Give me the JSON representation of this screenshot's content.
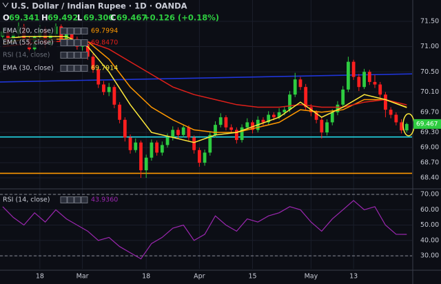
{
  "chart_data": {
    "type": "candlestick",
    "title": "U.S. Dollar / Indian Rupee · 1D · OANDA",
    "readout": [
      {
        "key": "O",
        "value": "69.341"
      },
      {
        "key": "H",
        "value": "69.492"
      },
      {
        "key": "L",
        "value": "69.300"
      },
      {
        "key": "C",
        "value": "69.467"
      }
    ],
    "change": "+0.126 (+0.18%)",
    "up_color": "#2ecc40",
    "down_color": "#ff1f1f",
    "ohlc": [
      [
        71.2,
        71.38,
        71.12,
        71.3
      ],
      [
        71.3,
        71.36,
        71.02,
        71.1
      ],
      [
        71.1,
        71.32,
        71.04,
        71.25
      ],
      [
        71.25,
        71.48,
        71.18,
        71.4
      ],
      [
        71.4,
        71.45,
        71.08,
        71.15
      ],
      [
        71.15,
        71.2,
        70.88,
        70.95
      ],
      [
        70.95,
        71.28,
        70.9,
        71.2
      ],
      [
        71.2,
        71.42,
        71.14,
        71.35
      ],
      [
        71.35,
        71.4,
        70.98,
        71.05
      ],
      [
        71.05,
        71.32,
        71.0,
        71.25
      ],
      [
        71.25,
        71.46,
        71.2,
        71.4
      ],
      [
        71.4,
        71.44,
        71.04,
        71.1
      ],
      [
        71.1,
        71.36,
        71.05,
        71.3
      ],
      [
        71.3,
        71.34,
        71.08,
        71.15
      ],
      [
        71.15,
        71.2,
        70.94,
        71.0
      ],
      [
        71.0,
        71.12,
        70.92,
        71.05
      ],
      [
        71.05,
        71.08,
        70.74,
        70.8
      ],
      [
        70.8,
        70.86,
        70.48,
        70.55
      ],
      [
        70.55,
        70.6,
        70.18,
        70.25
      ],
      [
        70.25,
        70.32,
        70.04,
        70.1
      ],
      [
        70.1,
        70.28,
        70.02,
        70.2
      ],
      [
        70.2,
        70.24,
        69.78,
        69.85
      ],
      [
        69.85,
        69.9,
        69.48,
        69.55
      ],
      [
        69.55,
        69.6,
        69.12,
        69.2
      ],
      [
        69.2,
        69.26,
        68.88,
        68.95
      ],
      [
        68.95,
        69.18,
        68.9,
        69.1
      ],
      [
        69.1,
        69.14,
        68.4,
        68.55
      ],
      [
        68.55,
        68.86,
        68.4,
        68.8
      ],
      [
        68.8,
        69.16,
        68.74,
        69.1
      ],
      [
        69.1,
        69.14,
        68.84,
        68.9
      ],
      [
        68.9,
        69.12,
        68.84,
        69.05
      ],
      [
        69.05,
        69.28,
        69.0,
        69.2
      ],
      [
        69.2,
        69.42,
        69.14,
        69.35
      ],
      [
        69.35,
        69.4,
        69.18,
        69.25
      ],
      [
        69.25,
        69.46,
        69.2,
        69.4
      ],
      [
        69.4,
        69.44,
        69.14,
        69.2
      ],
      [
        69.2,
        69.24,
        68.88,
        68.95
      ],
      [
        68.95,
        69.0,
        68.62,
        68.7
      ],
      [
        68.7,
        68.96,
        68.64,
        68.9
      ],
      [
        68.9,
        69.32,
        68.84,
        69.25
      ],
      [
        69.25,
        69.52,
        69.2,
        69.45
      ],
      [
        69.45,
        69.68,
        69.4,
        69.6
      ],
      [
        69.6,
        69.64,
        69.34,
        69.4
      ],
      [
        69.4,
        69.46,
        69.28,
        69.35
      ],
      [
        69.35,
        69.4,
        69.08,
        69.15
      ],
      [
        69.15,
        69.46,
        69.1,
        69.4
      ],
      [
        69.4,
        69.58,
        69.34,
        69.5
      ],
      [
        69.5,
        69.54,
        69.28,
        69.35
      ],
      [
        69.35,
        69.62,
        69.3,
        69.55
      ],
      [
        69.55,
        69.6,
        69.44,
        69.5
      ],
      [
        69.5,
        69.72,
        69.46,
        69.65
      ],
      [
        69.65,
        69.7,
        69.54,
        69.6
      ],
      [
        69.6,
        69.78,
        69.56,
        69.7
      ],
      [
        69.7,
        69.82,
        69.64,
        69.75
      ],
      [
        69.75,
        70.12,
        69.7,
        70.05
      ],
      [
        70.05,
        70.48,
        70.0,
        70.35
      ],
      [
        70.35,
        70.4,
        70.14,
        70.2
      ],
      [
        70.2,
        70.26,
        69.74,
        69.8
      ],
      [
        69.8,
        69.86,
        69.62,
        69.7
      ],
      [
        69.7,
        69.74,
        69.48,
        69.55
      ],
      [
        69.55,
        69.6,
        69.18,
        69.3
      ],
      [
        69.3,
        69.56,
        69.24,
        69.5
      ],
      [
        69.5,
        69.76,
        69.44,
        69.7
      ],
      [
        69.7,
        69.92,
        69.64,
        69.85
      ],
      [
        69.85,
        70.22,
        69.8,
        70.15
      ],
      [
        70.15,
        70.8,
        70.1,
        70.7
      ],
      [
        70.7,
        70.74,
        70.34,
        70.4
      ],
      [
        70.4,
        70.46,
        70.12,
        70.2
      ],
      [
        70.2,
        70.56,
        70.16,
        70.5
      ],
      [
        70.5,
        70.54,
        70.24,
        70.3
      ],
      [
        70.3,
        70.44,
        70.18,
        70.25
      ],
      [
        70.25,
        70.3,
        69.98,
        70.05
      ],
      [
        70.05,
        70.1,
        69.6,
        69.75
      ],
      [
        69.75,
        69.8,
        69.58,
        69.65
      ],
      [
        69.65,
        69.7,
        69.44,
        69.5
      ],
      [
        69.5,
        69.56,
        69.28,
        69.341
      ],
      [
        69.341,
        69.492,
        69.3,
        69.467
      ]
    ],
    "xlim": [
      -0.5,
      77
    ],
    "xticks": [
      {
        "value": 7,
        "label": "18"
      },
      {
        "value": 15,
        "label": "Mar"
      },
      {
        "value": 27,
        "label": "18"
      },
      {
        "value": 37,
        "label": "Apr"
      },
      {
        "value": 47,
        "label": "15"
      },
      {
        "value": 58,
        "label": "May"
      },
      {
        "value": 66,
        "label": "13"
      }
    ],
    "ylim": [
      68.236,
      71.924
    ],
    "yticks": [
      {
        "value": 71.5,
        "label": "71.50"
      },
      {
        "value": 71,
        "label": "71.00"
      },
      {
        "value": 70.5,
        "label": "70.50"
      },
      {
        "value": 70.1,
        "label": "70.10"
      },
      {
        "value": 69.7,
        "label": "69.70"
      },
      {
        "value": 69.3,
        "label": "69.30"
      },
      {
        "value": 69,
        "label": "69.00"
      },
      {
        "value": 68.7,
        "label": "68.70"
      },
      {
        "value": 68.4,
        "label": "68.40"
      }
    ],
    "last_price": "69.467",
    "ema": [
      {
        "name": "EMA (20, close)",
        "color": "#ff9800",
        "last": "69.7994",
        "x": [
          0,
          4,
          8,
          12,
          16,
          20,
          24,
          28,
          32,
          36,
          40,
          44,
          48,
          52,
          56,
          60,
          64,
          68,
          72,
          76
        ],
        "values": [
          71.05,
          71.15,
          71.15,
          71.15,
          71.1,
          70.75,
          70.2,
          69.8,
          69.55,
          69.35,
          69.3,
          69.3,
          69.4,
          69.5,
          69.75,
          69.7,
          69.75,
          69.95,
          69.95,
          69.7994
        ]
      },
      {
        "name": "EMA (55, close)",
        "color": "#e0201a",
        "last": "69.8470",
        "x": [
          0,
          4,
          8,
          12,
          16,
          20,
          24,
          28,
          32,
          36,
          40,
          44,
          48,
          52,
          56,
          60,
          64,
          68,
          72,
          76
        ],
        "values": [
          71.0,
          71.05,
          71.1,
          71.1,
          71.1,
          70.95,
          70.7,
          70.45,
          70.2,
          70.05,
          69.95,
          69.85,
          69.8,
          69.8,
          69.85,
          69.8,
          69.8,
          69.9,
          69.95,
          69.847
        ]
      },
      {
        "name": "EMA (30, close)",
        "color": "#ffeb3b",
        "last": "69.7914",
        "x": [
          0,
          4,
          8,
          12,
          16,
          20,
          24,
          28,
          32,
          36,
          40,
          44,
          48,
          52,
          56,
          60,
          64,
          68,
          72,
          76
        ],
        "values": [
          71.15,
          71.2,
          71.2,
          71.2,
          71.0,
          70.5,
          69.85,
          69.3,
          69.2,
          69.1,
          69.25,
          69.3,
          69.45,
          69.6,
          69.9,
          69.6,
          69.8,
          70.05,
          69.95,
          69.7914
        ]
      }
    ],
    "levels": [
      {
        "color": "#1f35d8",
        "values": [
          70.3,
          70.46
        ]
      },
      {
        "color": "#22d8e6",
        "values": [
          69.21
        ]
      },
      {
        "color": "#ff9800",
        "values": [
          68.49
        ]
      }
    ],
    "rsi": {
      "name": "RSI (14, close)",
      "color": "#9c27b0",
      "last": "43.9360",
      "x": [
        0,
        2,
        4,
        6,
        8,
        10,
        12,
        14,
        16,
        18,
        20,
        22,
        24,
        26,
        28,
        30,
        32,
        34,
        36,
        38,
        40,
        42,
        44,
        46,
        48,
        50,
        52,
        54,
        56,
        58,
        60,
        62,
        64,
        66,
        68,
        70,
        72,
        74,
        76
      ],
      "values": [
        62,
        55,
        50,
        58,
        52,
        60,
        54,
        50,
        46,
        40,
        42,
        36,
        32,
        28,
        38,
        42,
        48,
        50,
        40,
        44,
        56,
        50,
        46,
        54,
        52,
        56,
        58,
        62,
        60,
        52,
        46,
        54,
        60,
        66,
        60,
        62,
        50,
        44,
        43.936
      ],
      "ylim": [
        21.5,
        72.7
      ],
      "yticks": [
        {
          "value": 70,
          "label": "70.00"
        },
        {
          "value": 60,
          "label": "60.00"
        },
        {
          "value": 50,
          "label": "50.00"
        },
        {
          "value": 40,
          "label": "40.00"
        },
        {
          "value": 30,
          "label": "30.00"
        }
      ],
      "bands": [
        70,
        30
      ]
    }
  }
}
